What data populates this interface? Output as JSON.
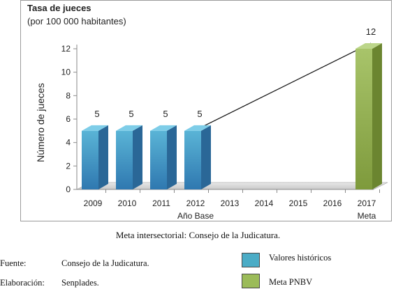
{
  "chart_data": {
    "type": "bar",
    "title": "Tasa de jueces",
    "subtitle": "(por 100 000 habitantes)",
    "ylabel": "Número de jueces",
    "xlabel": "",
    "categories": [
      "2009",
      "2010",
      "2011",
      "2012",
      "2013",
      "2014",
      "2015",
      "2016",
      "2017"
    ],
    "category_sublabels": {
      "2012": "Año Base",
      "2017": "Meta"
    },
    "series": [
      {
        "name": "Valores históricos",
        "color": "#4bacc6",
        "values": [
          5,
          5,
          5,
          5,
          null,
          null,
          null,
          null,
          null
        ]
      },
      {
        "name": "Meta PNBV",
        "color": "#9bbb59",
        "values": [
          null,
          null,
          null,
          null,
          null,
          null,
          null,
          null,
          12
        ]
      }
    ],
    "data_labels": [
      "5",
      "5",
      "5",
      "5",
      "",
      "",
      "",
      "",
      "12"
    ],
    "trend_line": {
      "from": {
        "x": "2012",
        "y": 5
      },
      "to": {
        "x": "2017",
        "y": 12
      }
    },
    "ylim": [
      0,
      12
    ],
    "yticks": [
      0,
      2,
      4,
      6,
      8,
      10,
      12
    ],
    "grid": false,
    "legend": "bottom-right"
  },
  "caption": "Meta intersectorial: Consejo de la Judicatura.",
  "footer": {
    "source_label": "Fuente:",
    "source_value": "Consejo de la Judicatura.",
    "elab_label": "Elaboración:",
    "elab_value": "Senplades."
  },
  "legend": {
    "items": [
      {
        "label": "Valores históricos",
        "color": "#4bacc6"
      },
      {
        "label": "Meta PNBV",
        "color": "#9bbb59"
      }
    ]
  }
}
